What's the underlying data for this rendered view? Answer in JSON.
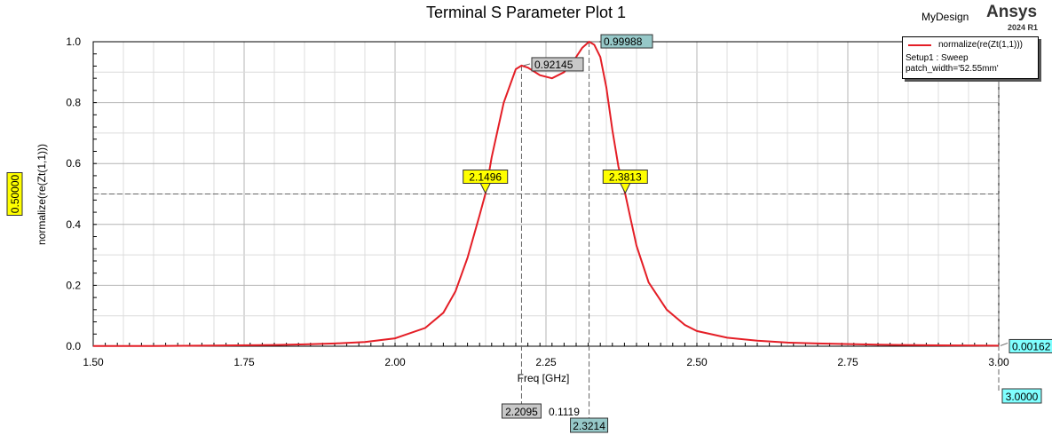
{
  "header": {
    "design_name": "MyDesign",
    "brand": "Ansys",
    "version": "2024 R1"
  },
  "legend": {
    "series_name": "normalize(re(Zt(1,1)))",
    "setup": "Setup1 : Sweep",
    "variation": "patch_width='52.55mm'"
  },
  "colors": {
    "series": "#e41e26",
    "marker_box": "#ffff00",
    "peak_box": "#96c8c8",
    "local_box": "#c8c8c8",
    "cyan_box": "#80ffff"
  },
  "chart_data": {
    "type": "line",
    "title": "Terminal S Parameter Plot 1",
    "xlabel": "Freq [GHz]",
    "ylabel": "normalize(re(Zt(1,1)))",
    "xlim": [
      1.5,
      3.0
    ],
    "ylim": [
      0.0,
      1.0
    ],
    "x_ticks": [
      "1.50",
      "1.75",
      "2.00",
      "2.25",
      "2.50",
      "2.75",
      "3.00"
    ],
    "y_ticks": [
      "0.0",
      "0.2",
      "0.4",
      "0.6",
      "0.8",
      "1.0"
    ],
    "grid": true,
    "series": [
      {
        "name": "normalize(re(Zt(1,1)))",
        "x": [
          1.5,
          1.6,
          1.7,
          1.8,
          1.85,
          1.9,
          1.95,
          2.0,
          2.05,
          2.08,
          2.1,
          2.12,
          2.14,
          2.1496,
          2.16,
          2.18,
          2.2,
          2.2095,
          2.22,
          2.24,
          2.26,
          2.28,
          2.3,
          2.31,
          2.3214,
          2.33,
          2.34,
          2.35,
          2.36,
          2.37,
          2.3813,
          2.39,
          2.4,
          2.42,
          2.45,
          2.48,
          2.5,
          2.55,
          2.6,
          2.65,
          2.7,
          2.8,
          2.9,
          3.0
        ],
        "y": [
          0.0005,
          0.001,
          0.002,
          0.004,
          0.006,
          0.009,
          0.014,
          0.026,
          0.06,
          0.11,
          0.18,
          0.29,
          0.43,
          0.5,
          0.62,
          0.8,
          0.91,
          0.92145,
          0.915,
          0.89,
          0.88,
          0.9,
          0.95,
          0.98,
          0.99988,
          0.99,
          0.95,
          0.85,
          0.71,
          0.59,
          0.5,
          0.42,
          0.33,
          0.21,
          0.12,
          0.07,
          0.05,
          0.028,
          0.018,
          0.012,
          0.009,
          0.005,
          0.003,
          0.00162
        ]
      }
    ],
    "markers": {
      "horizontal_value": "0.50000",
      "crossing_low": "2.1496",
      "crossing_high": "2.3813",
      "local_peak_y": "0.92145",
      "peak_y": "0.99988",
      "end_y": "0.00162",
      "local_peak_x": "2.2095",
      "delta_x": "0.1119",
      "peak_x": "2.3214",
      "end_x": "3.0000"
    }
  }
}
